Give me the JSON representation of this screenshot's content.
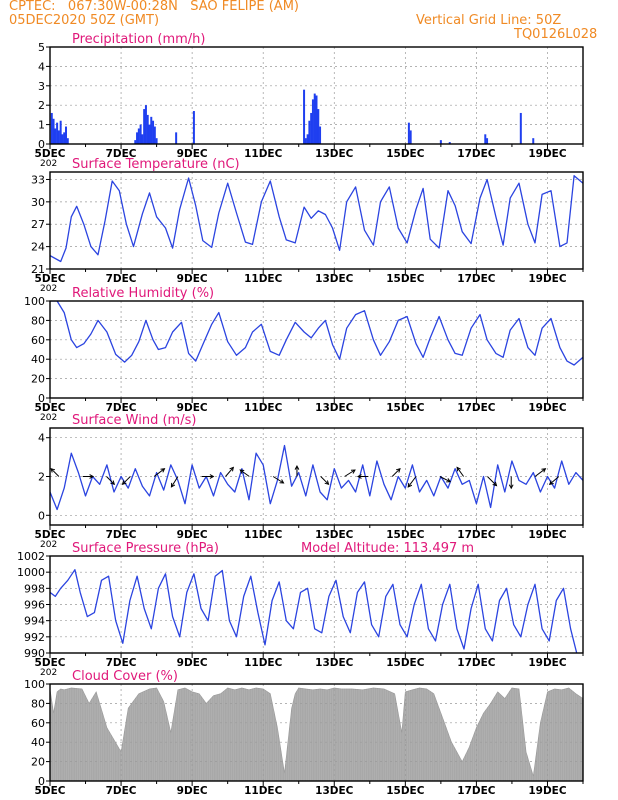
{
  "header": {
    "line1": "CPTEC:   067:30W-00:28N   SAO FELIPE (AM)",
    "line2": "05DEC2020 50Z (GMT)",
    "grid_note": "Vertical Grid Line: 50Z",
    "code": "TQ0126L028"
  },
  "colors": {
    "header": "#f08a24",
    "title": "#e0187a",
    "line": "#2b44e0",
    "bar": "#1f3ff0",
    "cloud": "#a8a8a8",
    "grid": "#9a9a9a"
  },
  "x_axis": {
    "day_min": 5,
    "day_max": 20,
    "tick_labels": [
      "5DEC",
      "7DEC",
      "9DEC",
      "11DEC",
      "13DEC",
      "15DEC",
      "17DEC",
      "19DEC"
    ],
    "tick_days": [
      5,
      7,
      9,
      11,
      13,
      15,
      17,
      19
    ],
    "year_stub": "202"
  },
  "panels": {
    "precip": {
      "title": "Precipitation (mm/h)",
      "yticks": [
        "0",
        "1",
        "2",
        "3",
        "4",
        "5"
      ]
    },
    "temp": {
      "title": "Surface Temperature (nC)",
      "yticks": [
        "21",
        "24",
        "27",
        "30",
        "33"
      ]
    },
    "rh": {
      "title": "Relative Humidity (%)",
      "yticks": [
        "0",
        "20",
        "40",
        "60",
        "80",
        "100"
      ]
    },
    "wind": {
      "title": "Surface Wind (m/s)",
      "yticks": [
        "0",
        "2",
        "4"
      ]
    },
    "pres": {
      "title": "Surface Pressure (hPa)",
      "altitude": "Model Altitude: 113.497 m",
      "yticks": [
        "990",
        "992",
        "994",
        "996",
        "998",
        "1000",
        "1002"
      ]
    },
    "cloud": {
      "title": "Cloud Cover (%)",
      "yticks": [
        "0",
        "20",
        "40",
        "60",
        "80",
        "100"
      ]
    }
  },
  "chart_data": [
    {
      "type": "bar",
      "title": "Precipitation (mm/h)",
      "ylim": [
        0,
        5
      ],
      "x": [
        5.05,
        5.1,
        5.15,
        5.2,
        5.25,
        5.3,
        5.35,
        5.4,
        5.45,
        5.5,
        7.4,
        7.45,
        7.5,
        7.55,
        7.6,
        7.65,
        7.7,
        7.75,
        7.8,
        7.85,
        7.9,
        7.95,
        8.0,
        8.55,
        9.05,
        12.15,
        12.2,
        12.25,
        12.3,
        12.35,
        12.4,
        12.45,
        12.5,
        12.55,
        12.6,
        15.1,
        15.15,
        16.0,
        16.25,
        17.25,
        17.3,
        18.25,
        18.6
      ],
      "values": [
        1.6,
        1.3,
        0.8,
        1.1,
        0.7,
        1.2,
        0.5,
        0.6,
        0.9,
        0.3,
        0.2,
        0.6,
        0.8,
        1.0,
        0.5,
        1.8,
        2.0,
        1.5,
        1.0,
        1.4,
        1.2,
        0.9,
        0.3,
        0.6,
        1.7,
        2.8,
        0.3,
        0.5,
        1.2,
        1.6,
        2.3,
        2.6,
        2.5,
        1.8,
        0.9,
        1.1,
        0.7,
        0.2,
        0.1,
        0.5,
        0.3,
        1.6,
        0.3
      ]
    },
    {
      "type": "line",
      "title": "Surface Temperature (nC)",
      "ylim": [
        21,
        34
      ],
      "x": [
        5.0,
        5.3,
        5.45,
        5.6,
        5.75,
        5.95,
        6.15,
        6.35,
        6.55,
        6.75,
        6.95,
        7.15,
        7.35,
        7.6,
        7.8,
        8.0,
        8.25,
        8.45,
        8.65,
        8.9,
        9.1,
        9.3,
        9.55,
        9.75,
        10.0,
        10.25,
        10.5,
        10.7,
        10.95,
        11.2,
        11.45,
        11.65,
        11.9,
        12.15,
        12.35,
        12.55,
        12.75,
        12.95,
        13.15,
        13.35,
        13.6,
        13.85,
        14.1,
        14.3,
        14.55,
        14.8,
        15.05,
        15.3,
        15.5,
        15.7,
        15.95,
        16.2,
        16.4,
        16.6,
        16.85,
        17.1,
        17.3,
        17.55,
        17.75,
        17.95,
        18.2,
        18.45,
        18.65,
        18.85,
        19.1,
        19.35,
        19.55,
        19.75,
        20.0
      ],
      "values": [
        22.8,
        22.0,
        23.8,
        28.0,
        29.4,
        27.0,
        24.0,
        22.9,
        27.5,
        32.8,
        31.5,
        27.0,
        24.0,
        28.4,
        31.2,
        28.0,
        26.5,
        23.8,
        29.0,
        33.2,
        29.5,
        24.8,
        23.9,
        28.5,
        32.5,
        28.5,
        24.6,
        24.3,
        30.0,
        32.8,
        28.0,
        24.9,
        24.5,
        29.3,
        27.8,
        28.8,
        28.3,
        26.5,
        23.5,
        30.0,
        32.0,
        26.2,
        24.2,
        30.0,
        32.0,
        26.5,
        24.5,
        29.0,
        31.8,
        25.0,
        23.8,
        31.5,
        29.5,
        26.0,
        24.4,
        30.5,
        33.0,
        28.0,
        24.2,
        30.5,
        32.5,
        27.0,
        24.5,
        31.0,
        31.5,
        24.0,
        24.5,
        33.5,
        32.5
      ]
    },
    {
      "type": "line",
      "title": "Relative Humidity (%)",
      "ylim": [
        0,
        100
      ],
      "x": [
        5.0,
        5.2,
        5.4,
        5.6,
        5.75,
        5.95,
        6.15,
        6.35,
        6.6,
        6.85,
        7.1,
        7.3,
        7.5,
        7.7,
        7.9,
        8.05,
        8.25,
        8.45,
        8.7,
        8.9,
        9.1,
        9.3,
        9.55,
        9.75,
        10.0,
        10.25,
        10.5,
        10.7,
        10.95,
        11.2,
        11.45,
        11.65,
        11.9,
        12.15,
        12.35,
        12.55,
        12.75,
        12.95,
        13.15,
        13.35,
        13.6,
        13.85,
        14.1,
        14.3,
        14.55,
        14.8,
        15.05,
        15.3,
        15.5,
        15.7,
        15.95,
        16.2,
        16.4,
        16.6,
        16.85,
        17.1,
        17.3,
        17.55,
        17.75,
        17.95,
        18.2,
        18.45,
        18.65,
        18.85,
        19.1,
        19.35,
        19.55,
        19.75,
        20.0
      ],
      "values": [
        100,
        100,
        88,
        60,
        52,
        56,
        66,
        80,
        68,
        45,
        37,
        44,
        58,
        80,
        60,
        50,
        52,
        68,
        78,
        46,
        38,
        55,
        76,
        88,
        58,
        44,
        52,
        68,
        76,
        48,
        44,
        60,
        78,
        68,
        62,
        72,
        80,
        55,
        40,
        72,
        86,
        90,
        60,
        44,
        58,
        80,
        84,
        56,
        42,
        62,
        84,
        60,
        46,
        44,
        72,
        86,
        60,
        46,
        42,
        70,
        82,
        52,
        44,
        72,
        82,
        52,
        38,
        34,
        42
      ]
    },
    {
      "type": "line",
      "title": "Surface Wind (m/s)",
      "ylim": [
        -0.5,
        4.5
      ],
      "x": [
        5.0,
        5.2,
        5.4,
        5.6,
        5.8,
        6.0,
        6.2,
        6.4,
        6.6,
        6.8,
        7.0,
        7.2,
        7.4,
        7.6,
        7.8,
        8.0,
        8.2,
        8.4,
        8.6,
        8.8,
        9.0,
        9.2,
        9.4,
        9.6,
        9.8,
        10.0,
        10.2,
        10.4,
        10.6,
        10.8,
        11.0,
        11.2,
        11.4,
        11.6,
        11.8,
        12.0,
        12.2,
        12.4,
        12.6,
        12.8,
        13.0,
        13.2,
        13.4,
        13.6,
        13.8,
        14.0,
        14.2,
        14.4,
        14.6,
        14.8,
        15.0,
        15.2,
        15.4,
        15.6,
        15.8,
        16.0,
        16.2,
        16.4,
        16.6,
        16.8,
        17.0,
        17.2,
        17.4,
        17.6,
        17.8,
        18.0,
        18.2,
        18.4,
        18.6,
        18.8,
        19.0,
        19.2,
        19.4,
        19.6,
        19.8,
        20.0
      ],
      "values": [
        1.2,
        0.3,
        1.4,
        3.2,
        2.2,
        1.0,
        2.0,
        1.6,
        2.6,
        1.2,
        2.0,
        1.4,
        2.4,
        1.5,
        1.0,
        2.2,
        1.3,
        2.6,
        1.8,
        0.6,
        2.6,
        1.4,
        2.0,
        1.0,
        2.2,
        1.6,
        1.2,
        2.4,
        0.8,
        3.2,
        2.6,
        0.6,
        1.8,
        3.6,
        1.5,
        2.2,
        1.0,
        2.6,
        1.2,
        0.8,
        2.4,
        1.4,
        1.8,
        1.2,
        2.6,
        1.0,
        2.8,
        1.6,
        0.8,
        2.0,
        1.4,
        2.6,
        1.2,
        1.8,
        1.0,
        2.0,
        1.4,
        2.4,
        1.6,
        1.8,
        0.6,
        2.0,
        0.4,
        2.6,
        1.2,
        2.8,
        1.8,
        1.6,
        2.2,
        1.2,
        2.0,
        1.4,
        2.8,
        1.6,
        2.2,
        1.8
      ]
    },
    {
      "type": "line",
      "title": "Surface Pressure (hPa)",
      "ylim": [
        990,
        1002
      ],
      "x": [
        5.0,
        5.15,
        5.3,
        5.5,
        5.7,
        5.85,
        6.05,
        6.25,
        6.45,
        6.65,
        6.85,
        7.05,
        7.25,
        7.45,
        7.65,
        7.85,
        8.05,
        8.25,
        8.45,
        8.65,
        8.85,
        9.05,
        9.25,
        9.45,
        9.65,
        9.85,
        10.05,
        10.25,
        10.45,
        10.65,
        10.85,
        11.05,
        11.25,
        11.45,
        11.65,
        11.85,
        12.05,
        12.25,
        12.45,
        12.65,
        12.85,
        13.05,
        13.25,
        13.45,
        13.65,
        13.85,
        14.05,
        14.25,
        14.45,
        14.65,
        14.85,
        15.05,
        15.25,
        15.45,
        15.65,
        15.85,
        16.05,
        16.25,
        16.45,
        16.65,
        16.85,
        17.05,
        17.25,
        17.45,
        17.65,
        17.85,
        18.05,
        18.25,
        18.45,
        18.65,
        18.85,
        19.05,
        19.25,
        19.45,
        19.65,
        19.85,
        20.0
      ],
      "values": [
        997.5,
        997.0,
        998.0,
        999.0,
        1000.3,
        997.5,
        994.5,
        995.0,
        999.0,
        999.5,
        994.0,
        991.2,
        996.5,
        999.5,
        995.5,
        993.0,
        998.0,
        999.8,
        994.5,
        992.0,
        997.5,
        999.8,
        995.5,
        994.0,
        999.5,
        1000.2,
        994.0,
        992.0,
        997.0,
        999.5,
        995.0,
        991.0,
        996.5,
        998.8,
        994.0,
        993.0,
        997.5,
        998.0,
        993.0,
        992.5,
        997.0,
        999.0,
        994.5,
        992.5,
        997.5,
        998.8,
        993.5,
        992.0,
        997.0,
        998.5,
        993.5,
        992.0,
        996.0,
        998.5,
        993.0,
        991.5,
        996.0,
        998.5,
        993.0,
        990.5,
        995.5,
        998.5,
        993.0,
        991.5,
        996.5,
        998.0,
        993.5,
        992.0,
        996.0,
        998.5,
        993.0,
        991.5,
        996.5,
        998.0,
        993.0,
        989.5,
        990.0
      ]
    },
    {
      "type": "area",
      "title": "Cloud Cover (%)",
      "ylim": [
        0,
        100
      ],
      "x": [
        5.0,
        5.1,
        5.2,
        5.3,
        5.4,
        5.6,
        5.9,
        6.1,
        6.3,
        6.6,
        7.0,
        7.2,
        7.5,
        7.8,
        8.0,
        8.2,
        8.4,
        8.6,
        8.8,
        9.0,
        9.2,
        9.4,
        9.6,
        9.8,
        10.0,
        10.2,
        10.4,
        10.6,
        10.8,
        11.0,
        11.2,
        11.4,
        11.6,
        11.8,
        11.9,
        12.0,
        12.2,
        12.4,
        12.6,
        12.8,
        13.0,
        13.2,
        13.5,
        13.8,
        14.1,
        14.4,
        14.7,
        14.9,
        15.0,
        15.2,
        15.4,
        15.6,
        15.8,
        16.0,
        16.3,
        16.6,
        16.8,
        17.0,
        17.2,
        17.4,
        17.6,
        17.8,
        18.0,
        18.2,
        18.4,
        18.6,
        18.8,
        19.0,
        19.2,
        19.4,
        19.6,
        19.8,
        20.0
      ],
      "values": [
        95,
        70,
        92,
        95,
        94,
        96,
        95,
        80,
        92,
        55,
        30,
        75,
        90,
        95,
        96,
        82,
        50,
        94,
        96,
        92,
        90,
        80,
        88,
        90,
        96,
        94,
        96,
        94,
        96,
        95,
        90,
        55,
        8,
        75,
        90,
        96,
        95,
        94,
        95,
        94,
        96,
        95,
        95,
        94,
        96,
        95,
        90,
        50,
        92,
        94,
        96,
        95,
        90,
        70,
        40,
        20,
        35,
        55,
        70,
        80,
        92,
        85,
        96,
        95,
        30,
        5,
        60,
        92,
        95,
        94,
        96,
        90,
        85
      ]
    }
  ]
}
